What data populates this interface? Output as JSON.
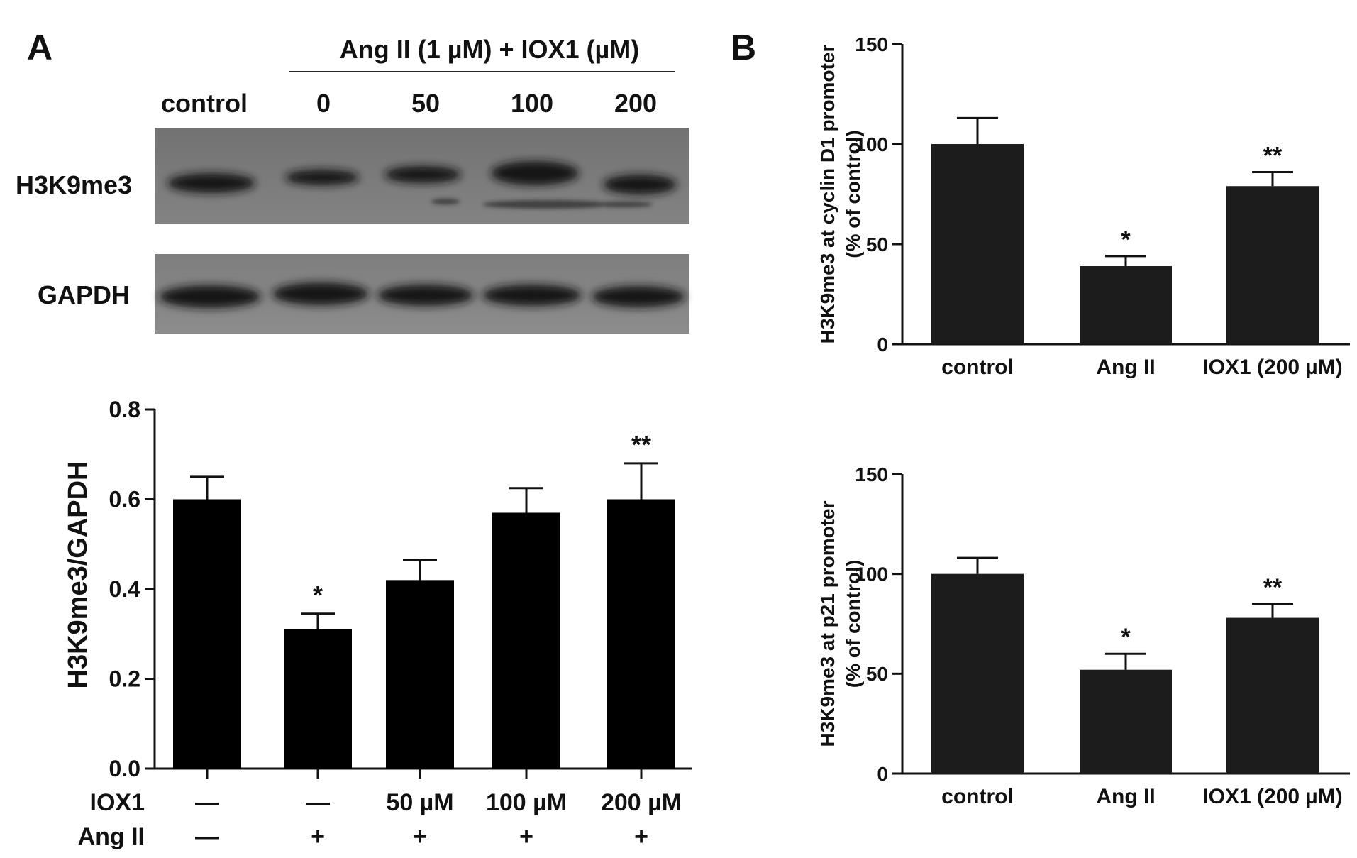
{
  "panels": {
    "a": "A",
    "b": "B"
  },
  "blot": {
    "header": "Ang II (1 µM) + IOX1 (µM)",
    "lane_labels": [
      "control",
      "0",
      "50",
      "100",
      "200"
    ],
    "row_labels": [
      "H3K9me3",
      "GAPDH"
    ]
  },
  "chart_data": [
    {
      "type": "bar",
      "id": "a-quant",
      "ylabel": "H3K9me3/GAPDH",
      "ylim": [
        0,
        0.8
      ],
      "yticks": [
        "0.0",
        "0.2",
        "0.4",
        "0.6",
        "0.8"
      ],
      "ytick_values": [
        0,
        0.2,
        0.4,
        0.6,
        0.8
      ],
      "categories": [
        "control",
        "Ang II",
        "IOX1 50 µM",
        "IOX1 100 µM",
        "IOX1 200 µM"
      ],
      "values": [
        0.6,
        0.31,
        0.42,
        0.57,
        0.6
      ],
      "errors": [
        0.05,
        0.035,
        0.045,
        0.055,
        0.08
      ],
      "annotations": [
        "",
        "*",
        "",
        "",
        "**"
      ],
      "treatment_rows": [
        {
          "label": "IOX1",
          "values": [
            "—",
            "—",
            "50 µM",
            "100 µM",
            "200 µM"
          ]
        },
        {
          "label": "Ang II",
          "values": [
            "—",
            "+",
            "+",
            "+",
            "+"
          ]
        }
      ],
      "bar_color": "#000000"
    },
    {
      "type": "bar",
      "id": "b-cyclin",
      "ylabel": [
        "H3K9me3 at cyclin D1 promoter",
        "(% of control)"
      ],
      "ylim": [
        0,
        150
      ],
      "yticks": [
        "0",
        "50",
        "100",
        "150"
      ],
      "ytick_values": [
        0,
        50,
        100,
        150
      ],
      "categories": [
        "control",
        "Ang II",
        "IOX1 (200 µM)"
      ],
      "values": [
        100,
        39,
        79
      ],
      "errors": [
        13,
        5,
        7
      ],
      "annotations": [
        "",
        "*",
        "**"
      ],
      "bar_color": "#1c1c1c"
    },
    {
      "type": "bar",
      "id": "b-p21",
      "ylabel": [
        "H3K9me3 at p21 promoter",
        "(% of control)"
      ],
      "ylim": [
        0,
        150
      ],
      "yticks": [
        "0",
        "50",
        "100",
        "150"
      ],
      "ytick_values": [
        0,
        50,
        100,
        150
      ],
      "categories": [
        "control",
        "Ang II",
        "IOX1 (200 µM)"
      ],
      "values": [
        100,
        52,
        78
      ],
      "errors": [
        8,
        8,
        7
      ],
      "annotations": [
        "",
        "*",
        "**"
      ],
      "bar_color": "#1c1c1c"
    }
  ]
}
